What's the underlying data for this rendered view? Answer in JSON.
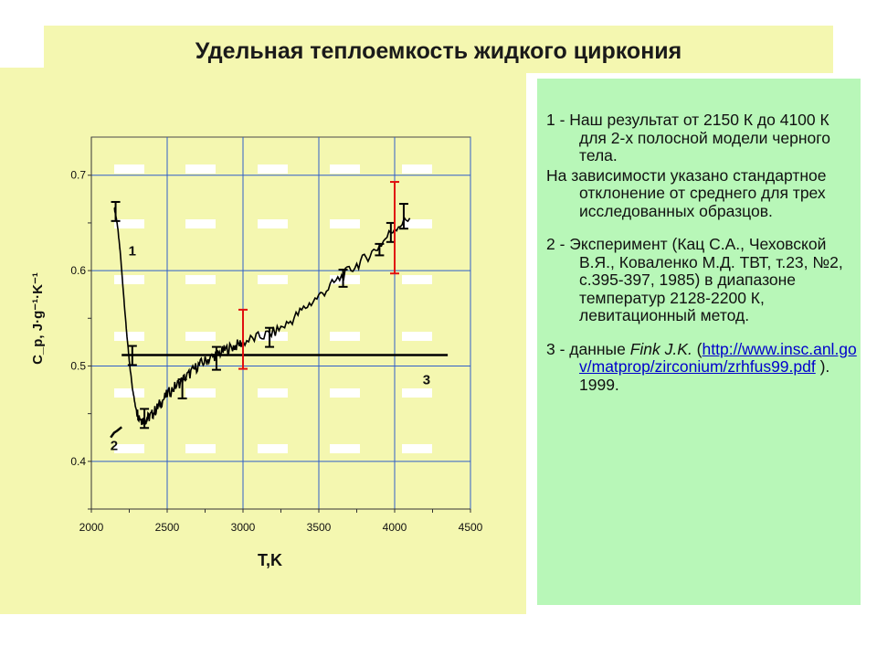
{
  "title": "Удельная теплоемкость жидкого циркония",
  "legend": {
    "item1": "1 - Наш результат от 2150 К до 4100 К для 2-х полосной модели черного тела.",
    "note": "На зависимости указано стандартное отклонение от среднего для трех исследованных образцов.",
    "item2": "2 - Эксперимент (Кац С.А., Чеховской В.Я., Коваленко М.Д. ТВТ, т.23, №2, с.395-397, 1985)  в диапазоне температур 2128-2200 К, левитационный метод.",
    "item3_prefix": "3 - данные ",
    "item3_author": "Fink J.K.",
    "item3_open": " (",
    "item3_link": "http://www.insc.anl.gov/matprop/zirconium/zrhfus99.pdf",
    "item3_suffix": " ). 1999."
  },
  "chart_data": {
    "type": "line",
    "xlabel": "T,K",
    "ylabel": "C_p, J·g⁻¹·K⁻¹",
    "xlim": [
      2000,
      4500
    ],
    "ylim": [
      0.35,
      0.74
    ],
    "xticks": [
      2000,
      2500,
      3000,
      3500,
      4000,
      4500
    ],
    "yticks": [
      0.4,
      0.5,
      0.6,
      0.7
    ],
    "grid": true,
    "series": [
      {
        "name": "1",
        "color": "#000000",
        "x": [
          2150,
          2170,
          2190,
          2210,
          2230,
          2250,
          2270,
          2290,
          2310,
          2330,
          2350,
          2370,
          2400,
          2430,
          2460,
          2500,
          2550,
          2600,
          2650,
          2700,
          2750,
          2800,
          2850,
          2900,
          2950,
          3000,
          3100,
          3200,
          3300,
          3400,
          3500,
          3600,
          3700,
          3800,
          3900,
          4000,
          4100
        ],
        "y": [
          0.667,
          0.65,
          0.62,
          0.58,
          0.54,
          0.505,
          0.478,
          0.458,
          0.448,
          0.444,
          0.443,
          0.445,
          0.449,
          0.455,
          0.462,
          0.47,
          0.478,
          0.485,
          0.492,
          0.5,
          0.505,
          0.51,
          0.514,
          0.518,
          0.521,
          0.525,
          0.53,
          0.535,
          0.545,
          0.56,
          0.573,
          0.587,
          0.6,
          0.612,
          0.626,
          0.645,
          0.655
        ]
      },
      {
        "name": "2",
        "color": "#000000",
        "x": [
          2128,
          2150,
          2170,
          2200
        ],
        "y": [
          0.425,
          0.43,
          0.432,
          0.436
        ]
      },
      {
        "name": "3",
        "color": "#000000",
        "x": [
          2200,
          4350
        ],
        "y": [
          0.5115,
          0.5115
        ]
      }
    ],
    "error_bars_black": [
      {
        "x": 2160,
        "y": 0.662,
        "err": 0.01
      },
      {
        "x": 2270,
        "y": 0.511,
        "err": 0.01
      },
      {
        "x": 2350,
        "y": 0.445,
        "err": 0.01
      },
      {
        "x": 2600,
        "y": 0.476,
        "err": 0.01
      },
      {
        "x": 2825,
        "y": 0.508,
        "err": 0.012
      },
      {
        "x": 3175,
        "y": 0.53,
        "err": 0.01
      },
      {
        "x": 3660,
        "y": 0.592,
        "err": 0.009
      },
      {
        "x": 3900,
        "y": 0.622,
        "err": 0.006
      },
      {
        "x": 3975,
        "y": 0.64,
        "err": 0.01
      },
      {
        "x": 4060,
        "y": 0.657,
        "err": 0.013
      }
    ],
    "error_bars_red": [
      {
        "x": 3000,
        "y": 0.528,
        "err": 0.031
      },
      {
        "x": 4000,
        "y": 0.645,
        "err": 0.048
      }
    ],
    "series_labels": [
      "1",
      "2",
      "3"
    ]
  }
}
